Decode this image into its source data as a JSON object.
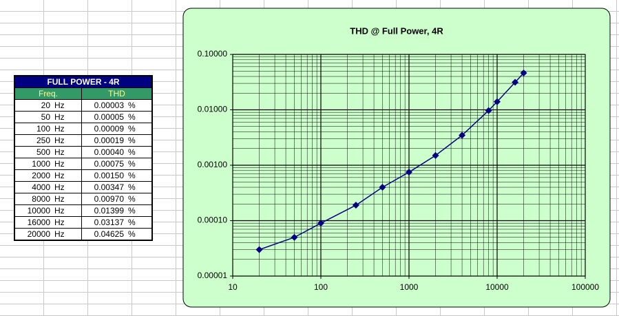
{
  "table": {
    "title": "FULL POWER - 4R",
    "headers": [
      "Freq.",
      "THD"
    ],
    "rows": [
      [
        "20",
        "Hz",
        "0.00003",
        "%"
      ],
      [
        "50",
        "Hz",
        "0.00005",
        "%"
      ],
      [
        "100",
        "Hz",
        "0.00009",
        "%"
      ],
      [
        "250",
        "Hz",
        "0.00019",
        "%"
      ],
      [
        "500",
        "Hz",
        "0.00040",
        "%"
      ],
      [
        "1000",
        "Hz",
        "0.00075",
        "%"
      ],
      [
        "2000",
        "Hz",
        "0.00150",
        "%"
      ],
      [
        "4000",
        "Hz",
        "0.00347",
        "%"
      ],
      [
        "8000",
        "Hz",
        "0.00970",
        "%"
      ],
      [
        "10000",
        "Hz",
        "0.01399",
        "%"
      ],
      [
        "16000",
        "Hz",
        "0.03137",
        "%"
      ],
      [
        "20000",
        "Hz",
        "0.04625",
        "%"
      ]
    ]
  },
  "chart_data": {
    "type": "line",
    "title": "THD @ Full Power, 4R",
    "x": [
      20,
      50,
      100,
      250,
      500,
      1000,
      2000,
      4000,
      8000,
      10000,
      16000,
      20000
    ],
    "series": [
      {
        "name": "THD",
        "color": "#000080",
        "values": [
          3e-05,
          5e-05,
          9e-05,
          0.00019,
          0.0004,
          0.00075,
          0.0015,
          0.00347,
          0.0097,
          0.01399,
          0.03137,
          0.04625
        ]
      }
    ],
    "xlim": [
      10,
      100000
    ],
    "xticks": [
      10,
      100,
      1000,
      10000,
      100000
    ],
    "xlog": true,
    "ylim": [
      1e-05,
      0.1
    ],
    "yticks": [
      {
        "value": 1e-05,
        "label": "0.00001"
      },
      {
        "value": 0.0001,
        "label": "0.00010"
      },
      {
        "value": 0.001,
        "label": "0.00100"
      },
      {
        "value": 0.01,
        "label": "0.01000"
      },
      {
        "value": 0.1,
        "label": "0.10000"
      }
    ],
    "ylog": true,
    "grid": true,
    "legend": false
  }
}
